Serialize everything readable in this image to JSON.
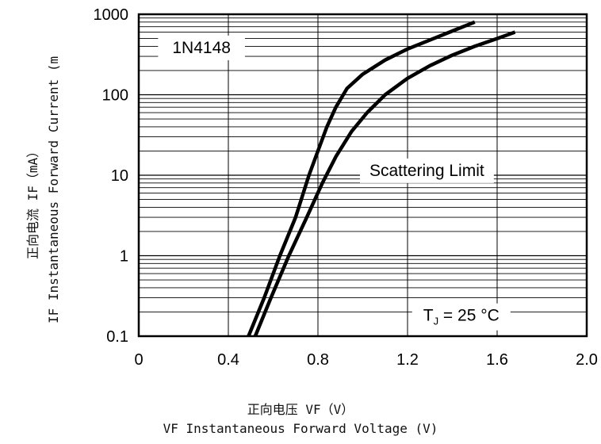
{
  "chart_data": {
    "type": "line",
    "xlim": [
      0,
      2.0
    ],
    "ylim": [
      0.1,
      1000
    ],
    "yscale": "log",
    "x_ticks": [
      "0",
      "0.4",
      "0.8",
      "1.2",
      "1.6",
      "2.0"
    ],
    "y_ticks": [
      "0.1",
      "1",
      "10",
      "100",
      "1000"
    ],
    "grid": true,
    "xlabel_cn": "正向电压  VF（V）",
    "xlabel_en": "VF  Instantaneous Forward Voltage (V)",
    "ylabel_cn": "正向电流  IF（mA）",
    "ylabel_en": "IF Instantaneous Forward Current (m",
    "annotations": {
      "part": "1N4148",
      "scatter": "Scattering Limit",
      "temp_main": "T",
      "temp_sub": "J",
      "temp_rest": " = 25 °C"
    },
    "series": [
      {
        "x": [
          0.49,
          0.56,
          0.63,
          0.7,
          0.76,
          0.8,
          0.84,
          0.88,
          0.93,
          1.0,
          1.1,
          1.2,
          1.3,
          1.4,
          1.5
        ],
        "y": [
          0.1,
          0.3,
          1,
          3,
          10,
          20,
          40,
          70,
          120,
          180,
          270,
          370,
          480,
          620,
          800
        ]
      },
      {
        "x": [
          0.52,
          0.59,
          0.67,
          0.75,
          0.82,
          0.88,
          0.95,
          1.02,
          1.1,
          1.2,
          1.3,
          1.4,
          1.5,
          1.6,
          1.68
        ],
        "y": [
          0.1,
          0.3,
          1,
          3,
          8,
          17,
          35,
          60,
          100,
          160,
          230,
          310,
          400,
          500,
          600
        ]
      }
    ]
  }
}
